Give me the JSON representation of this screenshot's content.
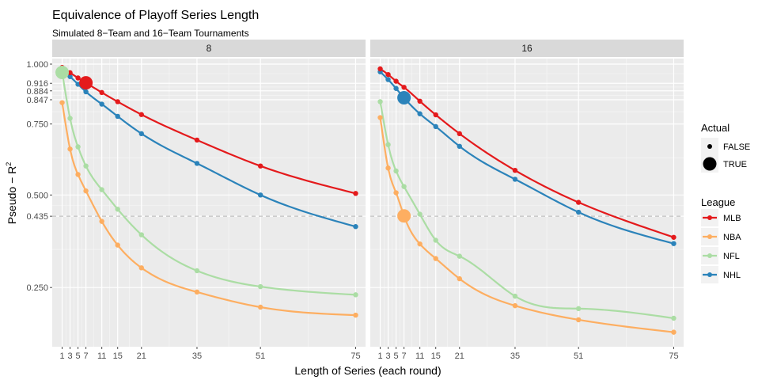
{
  "chart_data": {
    "type": "line",
    "title": "Equivalence of Playoff Series Length",
    "subtitle": "Simulated 8−Team and 16−Team Tournaments",
    "xlabel": "Length of Series (each round)",
    "ylabel": "Pseudo − R",
    "ylabel_sup": "2",
    "x_ticks": [
      1,
      3,
      5,
      7,
      11,
      15,
      21,
      35,
      51,
      75
    ],
    "xlim": [
      -1.5,
      77.5
    ],
    "y_ticks": [
      0.25,
      0.435,
      0.5,
      0.75,
      0.847,
      0.884,
      0.916,
      1.0
    ],
    "y_tick_labels": [
      "0.250",
      "0.435",
      "0.500",
      "0.750",
      "0.847",
      "0.884",
      "0.916",
      "1.000"
    ],
    "y_scale": "sqrt",
    "ylim": [
      0.135,
      1.025
    ],
    "hline": 0.435,
    "grid": true,
    "legend_position": "right",
    "colors": {
      "MLB": "#e41a1c",
      "NBA": "#fdae61",
      "NFL": "#abdda4",
      "NHL": "#2b83ba"
    },
    "legend": {
      "actual_title": "Actual",
      "actual_items": [
        "FALSE",
        "TRUE"
      ],
      "league_title": "League",
      "league_items": [
        "MLB",
        "NBA",
        "NFL",
        "NHL"
      ]
    },
    "x": [
      1,
      3,
      5,
      7,
      11,
      15,
      21,
      35,
      51,
      75
    ],
    "panels": [
      {
        "label": "8",
        "series": [
          {
            "name": "MLB",
            "values": [
              0.985,
              0.962,
              0.939,
              0.918,
              0.877,
              0.839,
              0.787,
              0.689,
              0.596,
              0.505
            ],
            "actual_index": 3
          },
          {
            "name": "NBA",
            "values": [
              0.835,
              0.656,
              0.567,
              0.513,
              0.42,
              0.354,
              0.296,
              0.24,
              0.208,
              0.192
            ],
            "actual_index": null
          },
          {
            "name": "NFL",
            "values": [
              0.963,
              0.772,
              0.664,
              0.596,
              0.517,
              0.456,
              0.382,
              0.289,
              0.252,
              0.234
            ],
            "actual_index": 0
          },
          {
            "name": "NHL",
            "values": [
              0.976,
              0.945,
              0.912,
              0.88,
              0.829,
              0.78,
              0.713,
              0.605,
              0.5,
              0.405
            ],
            "actual_index": null
          }
        ]
      },
      {
        "label": "16",
        "series": [
          {
            "name": "MLB",
            "values": [
              0.979,
              0.954,
              0.925,
              0.899,
              0.841,
              0.786,
              0.713,
              0.581,
              0.477,
              0.375
            ],
            "actual_index": null
          },
          {
            "name": "NBA",
            "values": [
              0.775,
              0.589,
              0.507,
              0.436,
              0.357,
              0.319,
              0.27,
              0.211,
              0.183,
              0.16
            ],
            "actual_index": 3
          },
          {
            "name": "NFL",
            "values": [
              0.839,
              0.672,
              0.579,
              0.527,
              0.441,
              0.367,
              0.325,
              0.231,
              0.205,
              0.186
            ],
            "actual_index": null
          },
          {
            "name": "NHL",
            "values": [
              0.966,
              0.932,
              0.894,
              0.855,
              0.79,
              0.74,
              0.666,
              0.551,
              0.447,
              0.358
            ],
            "actual_index": 3
          }
        ]
      }
    ]
  }
}
